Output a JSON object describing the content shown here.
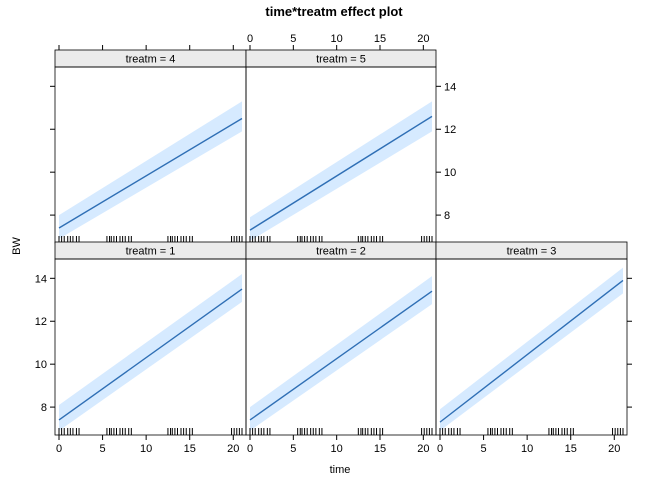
{
  "chart_data": {
    "type": "line",
    "title": "time*treatm effect plot",
    "xlabel": "time",
    "ylabel": "BW",
    "xlim": [
      0,
      21
    ],
    "ylim": [
      6.7,
      14.9
    ],
    "x_ticks": [
      0,
      5,
      10,
      15,
      20
    ],
    "y_ticks": [
      8,
      10,
      12,
      14
    ],
    "rug_x": [
      0,
      0.3,
      0.6,
      1,
      1.3,
      1.6,
      2,
      2.3,
      5.5,
      5.8,
      6,
      6.3,
      6.6,
      7,
      7.3,
      7.6,
      8,
      8.3,
      12.5,
      12.8,
      13,
      13.3,
      13.6,
      14,
      14.3,
      14.6,
      15,
      15.3,
      19.8,
      20.1,
      20.4,
      20.7,
      21
    ],
    "panels": [
      {
        "label": "treatm = 4",
        "x": [
          0,
          21
        ],
        "fit": [
          7.4,
          12.5
        ],
        "lower": [
          6.9,
          11.9
        ],
        "upper": [
          8.0,
          13.3
        ]
      },
      {
        "label": "treatm = 5",
        "x": [
          0,
          21
        ],
        "fit": [
          7.3,
          12.6
        ],
        "lower": [
          6.8,
          11.9
        ],
        "upper": [
          7.9,
          13.3
        ]
      },
      {
        "label": "treatm = 1",
        "x": [
          0,
          21
        ],
        "fit": [
          7.4,
          13.5
        ],
        "lower": [
          6.9,
          12.9
        ],
        "upper": [
          8.1,
          14.2
        ]
      },
      {
        "label": "treatm = 2",
        "x": [
          0,
          21
        ],
        "fit": [
          7.4,
          13.4
        ],
        "lower": [
          6.9,
          12.8
        ],
        "upper": [
          8.0,
          14.1
        ]
      },
      {
        "label": "treatm = 3",
        "x": [
          0,
          21
        ],
        "fit": [
          7.3,
          13.9
        ],
        "lower": [
          6.9,
          13.3
        ],
        "upper": [
          7.9,
          14.5
        ]
      }
    ],
    "colors": {
      "line": "#2f6fb5",
      "band": "#d6eaff",
      "strip": "#ebebeb"
    },
    "grid": false
  }
}
